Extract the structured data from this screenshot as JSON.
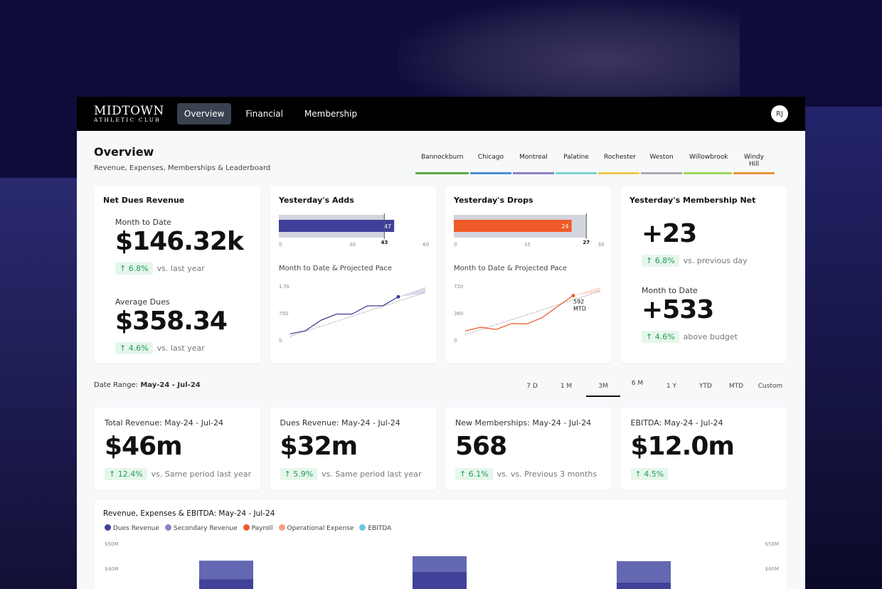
{
  "brand": {
    "line1": "MIDTOWN",
    "line2": "ATHLETIC CLUB"
  },
  "nav": [
    {
      "label": "Overview",
      "active": true
    },
    {
      "label": "Financial"
    },
    {
      "label": "Membership"
    }
  ],
  "user_initials": "RJ",
  "page": {
    "title": "Overview",
    "subtitle": "Revenue, Expenses, Memberships & Leaderboard"
  },
  "locations": [
    {
      "label": "Bannockburn",
      "color": "#5fa843"
    },
    {
      "label": "Chicago",
      "color": "#4a8fd6"
    },
    {
      "label": "Montreal",
      "color": "#8e80c4"
    },
    {
      "label": "Palatine",
      "color": "#7dd3cb"
    },
    {
      "label": "Rochester",
      "color": "#f2c94c"
    },
    {
      "label": "Weston",
      "color": "#a8a8b8"
    },
    {
      "label": "Willowbrook",
      "color": "#9bd65a"
    },
    {
      "label": "Windy Hill",
      "color": "#e8923a"
    }
  ],
  "net_dues": {
    "title": "Net Dues Revenue",
    "mtd_label": "Month to Date",
    "mtd_value": "$146.32k",
    "mtd_change": "↑ 6.8%",
    "mtd_vs": "vs. last year",
    "avg_label": "Average Dues",
    "avg_value": "$358.34",
    "avg_change": "↑ 4.6%",
    "avg_vs": "vs. last year"
  },
  "adds": {
    "title": "Yesterday's Adds",
    "value": 47,
    "target": 43,
    "max": 60,
    "ticks": [
      "0",
      "30",
      "60"
    ],
    "color": "#3f3f9a",
    "pace_title": "Month to Date & Projected Pace",
    "y_ticks": [
      "1.5k",
      "750",
      "0"
    ],
    "y_max": 1500,
    "series": [
      170,
      260,
      550,
      720,
      720,
      950,
      950,
      1200
    ]
  },
  "drops": {
    "title": "Yesterday's Drops",
    "value": 24,
    "target": 27,
    "max": 30,
    "ticks": [
      "0",
      "15",
      "30"
    ],
    "color": "#f05a28",
    "pace_title": "Month to Date & Projected Pace",
    "y_ticks": [
      "720",
      "360",
      "0"
    ],
    "y_max": 720,
    "series": [
      120,
      170,
      140,
      220,
      215,
      300,
      450,
      592
    ],
    "annotation": [
      "592",
      "MTD"
    ]
  },
  "net": {
    "title": "Yesterday's Membership Net",
    "value": "+23",
    "change": "↑ 6.8%",
    "vs": "vs. previous day",
    "mtd_label": "Month to Date",
    "mtd_value": "+533",
    "mtd_change": "↑ 4.6%",
    "mtd_vs": "above budget"
  },
  "date_range": {
    "label": "Date Range:",
    "value": "May-24 - Jul-24",
    "options": [
      "7 D",
      "1 M",
      "3M",
      "6 M",
      "1 Y",
      "YTD",
      "MTD",
      "Custom"
    ],
    "active": "3M"
  },
  "kpis": [
    {
      "title": "Total Revenue:  May-24 - Jul-24",
      "value": "$46m",
      "change": "↑ 12.4%",
      "vs": "vs. Same period last year"
    },
    {
      "title": "Dues Revenue:  May-24 - Jul-24",
      "value": "$32m",
      "change": "↑ 5.9%",
      "vs": "vs. Same period last year"
    },
    {
      "title": "New Memberships:  May-24 - Jul-24",
      "value": "568",
      "change": "↑ 6.1%",
      "vs": "vs. vs. Previous 3 months"
    },
    {
      "title": "EBITDA:  May-24 - Jul-24",
      "value": "$12.0m",
      "change": "↑ 4.5%",
      "vs": ""
    }
  ],
  "chart_data": {
    "type": "bar",
    "title": "Revenue, Expenses & EBITDA:  May-24 - Jul-24",
    "legend": [
      {
        "name": "Dues Revenue",
        "color": "#3f3f9a"
      },
      {
        "name": "Secondary Revenue",
        "color": "#8585c8"
      },
      {
        "name": "Payroll",
        "color": "#f05a28"
      },
      {
        "name": "Operational Expense",
        "color": "#f7a086"
      },
      {
        "name": "EBITDA",
        "color": "#6cc8e0"
      }
    ],
    "y_ticks": [
      "$50M",
      "$40M"
    ],
    "y_range_visible": [
      40,
      50
    ],
    "series": [
      {
        "name": "Dues Revenue",
        "values": [
          35.7,
          38.6,
          34.3
        ]
      },
      {
        "name": "Secondary Revenue",
        "values": [
          7.4,
          6.3,
          8.6
        ]
      }
    ]
  }
}
